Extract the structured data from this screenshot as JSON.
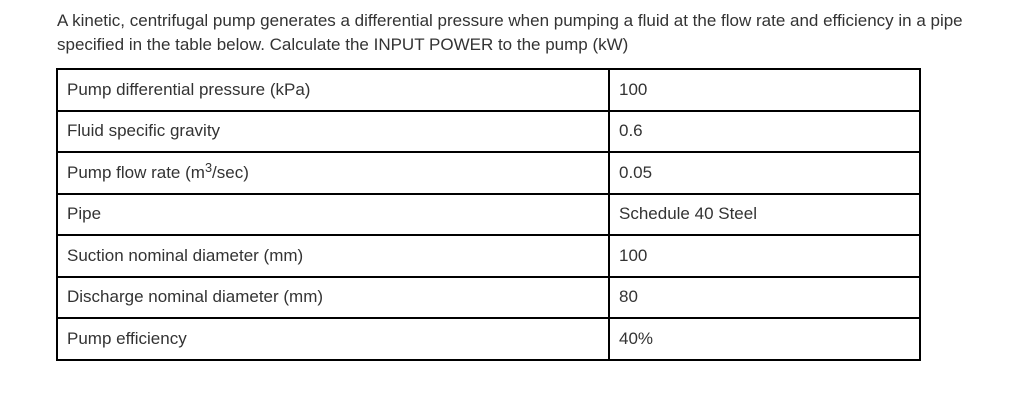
{
  "question": {
    "text": "A kinetic, centrifugal pump generates a differential pressure when pumping a fluid at the flow rate and efficiency in a pipe specified in the table below. Calculate the INPUT POWER to the pump (kW)"
  },
  "table": {
    "rows": [
      {
        "label": "Pump differential pressure (kPa)",
        "value": "100"
      },
      {
        "label": "Fluid specific gravity",
        "value": "0.6"
      },
      {
        "label_prefix": "Pump flow rate (m",
        "label_sup": "3",
        "label_suffix": "/sec)",
        "value": "0.05"
      },
      {
        "label": "Pipe",
        "value": "Schedule 40 Steel"
      },
      {
        "label": "Suction nominal diameter (mm)",
        "value": "100"
      },
      {
        "label": "Discharge nominal diameter (mm)",
        "value": "80"
      },
      {
        "label": "Pump efficiency",
        "value": "40%"
      }
    ]
  },
  "colors": {
    "text": "#333333",
    "border": "#000000",
    "background": "#ffffff"
  }
}
